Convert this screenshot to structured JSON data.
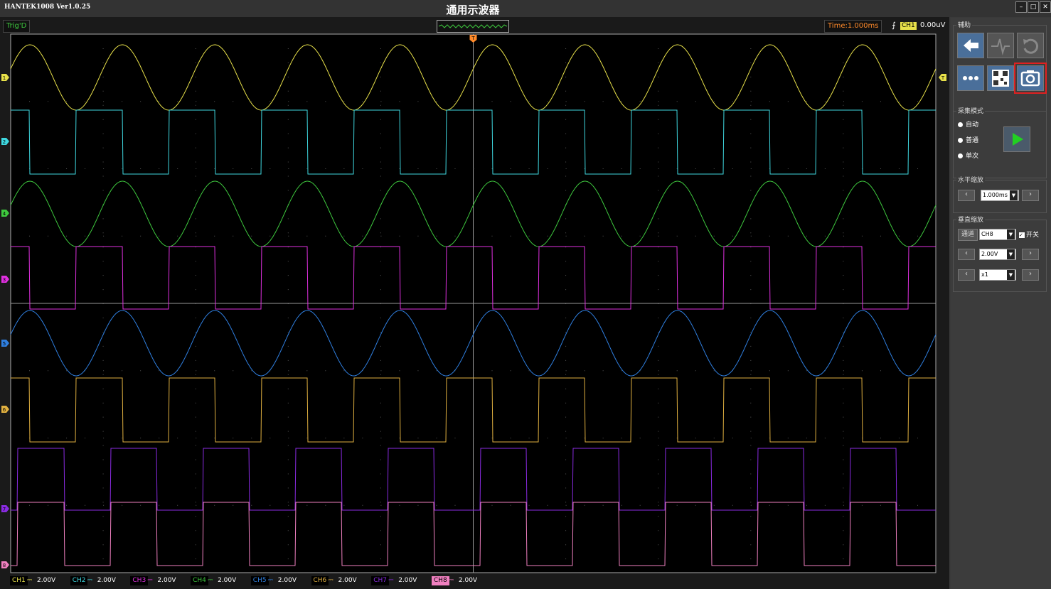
{
  "title_bar": {
    "app": "HANTEK1008 Ver1.0.25",
    "title": "通用示波器"
  },
  "status_bar": {
    "trigger_state": "Trig'D",
    "time": "Time:1.000ms",
    "trigger_channel": "CH1",
    "trigger_level": "0.00uV"
  },
  "screen": {
    "trigger_marker": "T",
    "markers": [
      "1",
      "2",
      "4",
      "3",
      "5",
      "6",
      "7",
      "8"
    ]
  },
  "channels": [
    {
      "name": "CH1",
      "scale": "2.00V",
      "color": "#e8e14a"
    },
    {
      "name": "CH2",
      "scale": "2.00V",
      "color": "#3fd8e0"
    },
    {
      "name": "CH3",
      "scale": "2.00V",
      "color": "#e030e0"
    },
    {
      "name": "CH4",
      "scale": "2.00V",
      "color": "#3ec83e"
    },
    {
      "name": "CH5",
      "scale": "2.00V",
      "color": "#2f7fe0"
    },
    {
      "name": "CH6",
      "scale": "2.00V",
      "color": "#e0b040"
    },
    {
      "name": "CH7",
      "scale": "2.00V",
      "color": "#8a2be2"
    },
    {
      "name": "CH8",
      "scale": "2.00V",
      "color": "#f080c0"
    }
  ],
  "panel": {
    "aux": "辅助",
    "acquisition": {
      "title": "采集模式",
      "options": [
        "自动",
        "普通",
        "单次"
      ]
    },
    "horizontal": {
      "title": "水平缩放",
      "value": "1.000ms"
    },
    "vertical": {
      "title": "垂直缩放",
      "channel_button": "通道",
      "channel": "CH8",
      "switch": "开关",
      "volts": "2.00V",
      "probe": "x1"
    }
  }
}
